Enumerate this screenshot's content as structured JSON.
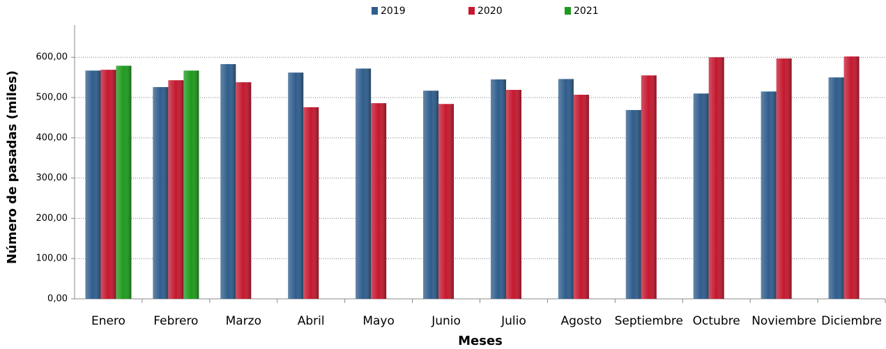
{
  "chart_data": {
    "type": "bar",
    "x_label": "Meses",
    "y_label": "Número de pasadas (miles)",
    "categories": [
      "Enero",
      "Febrero",
      "Marzo",
      "Abril",
      "Mayo",
      "Junio",
      "Julio",
      "Agosto",
      "Septiembre",
      "Octubre",
      "Noviembre",
      "Diciembre"
    ],
    "series": [
      {
        "name": "2019",
        "color": "#2f5d8c",
        "values": [
          567,
          526,
          583,
          562,
          572,
          517,
          545,
          546,
          469,
          510,
          515,
          550
        ]
      },
      {
        "name": "2020",
        "color": "#c4182f",
        "values": [
          569,
          543,
          538,
          476,
          486,
          484,
          519,
          507,
          555,
          600,
          597,
          602
        ]
      },
      {
        "name": "2021",
        "color": "#1e9a1e",
        "values": [
          579,
          567,
          null,
          null,
          null,
          null,
          null,
          null,
          null,
          null,
          null,
          null
        ]
      }
    ],
    "ylim": [
      0,
      680
    ],
    "yticks": [
      {
        "value": 0,
        "label": "0,00"
      },
      {
        "value": 100,
        "label": "100,00"
      },
      {
        "value": 200,
        "label": "200,00"
      },
      {
        "value": 300,
        "label": "300,00"
      },
      {
        "value": 400,
        "label": "400,00"
      },
      {
        "value": 500,
        "label": "500,00"
      },
      {
        "value": 600,
        "label": "600,00"
      }
    ],
    "grid": true,
    "legend": "top"
  }
}
